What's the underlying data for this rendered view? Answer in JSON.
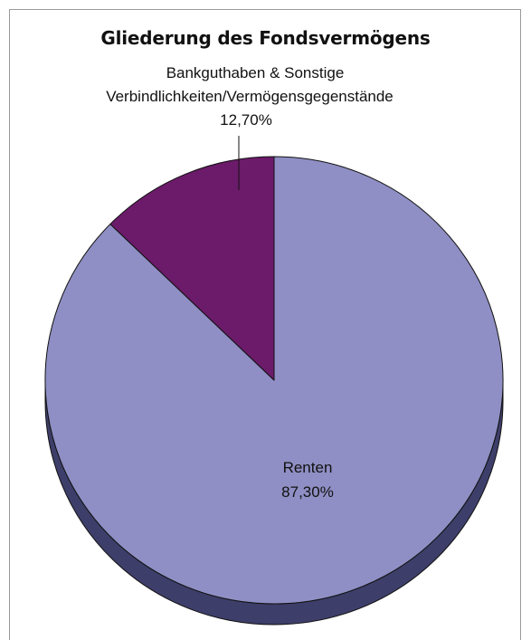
{
  "chart_data": {
    "type": "pie",
    "title": "Gliederung des Fondsvermögens",
    "slices": [
      {
        "label": "Renten",
        "value": 87.3,
        "value_label": "87,30%",
        "color": "#8f8fc5",
        "side_color": "#3e3e6a"
      },
      {
        "label_lines": [
          "Bankguthaben & Sonstige",
          "Verbindlichkeiten/Vermögensgegenstände"
        ],
        "value": 12.7,
        "value_label": "12,70%",
        "color": "#6b1b69",
        "side_color": "#3a0e39"
      }
    ],
    "start_angle_deg": -90,
    "three_d": true,
    "legend": "none"
  }
}
